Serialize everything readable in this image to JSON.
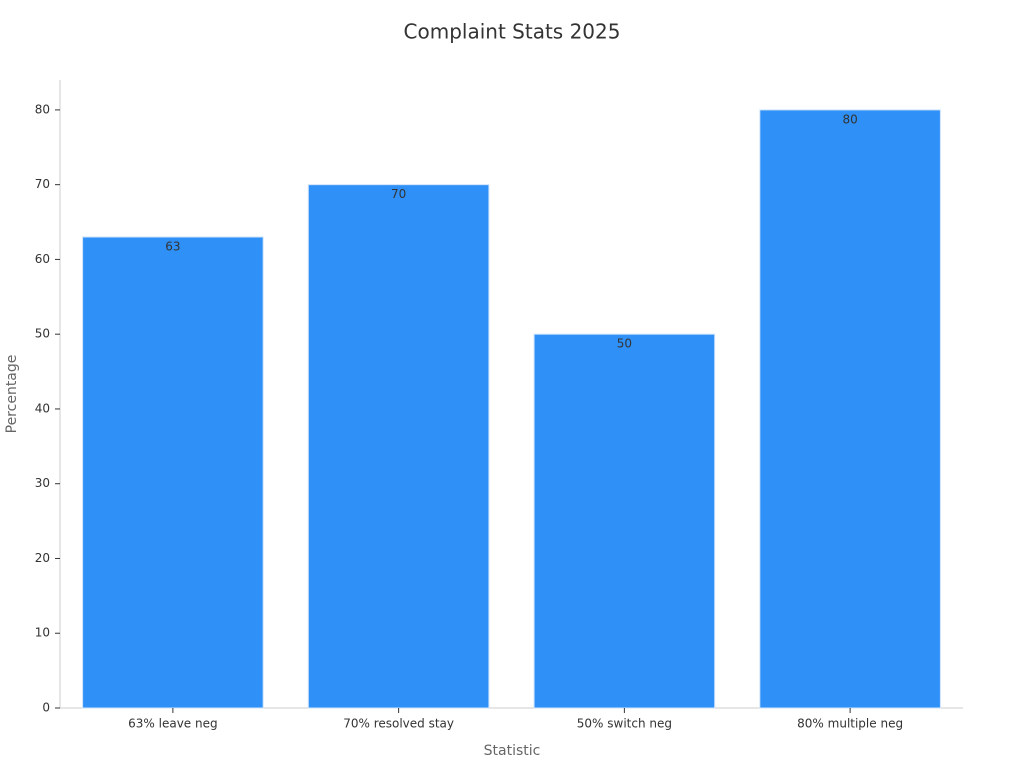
{
  "chart_data": {
    "type": "bar",
    "title": "Complaint Stats 2025",
    "x_label": "Statistic",
    "y_label": "Percentage",
    "categories": [
      "63% leave neg",
      "70% resolved stay",
      "50% switch neg",
      "80% multiple neg"
    ],
    "values": [
      63,
      70,
      50,
      80
    ],
    "color": "#2f91f7",
    "ylim": [
      0,
      84
    ],
    "yticks": [
      0,
      10,
      20,
      30,
      40,
      50,
      60,
      70,
      80
    ],
    "grid": false
  }
}
